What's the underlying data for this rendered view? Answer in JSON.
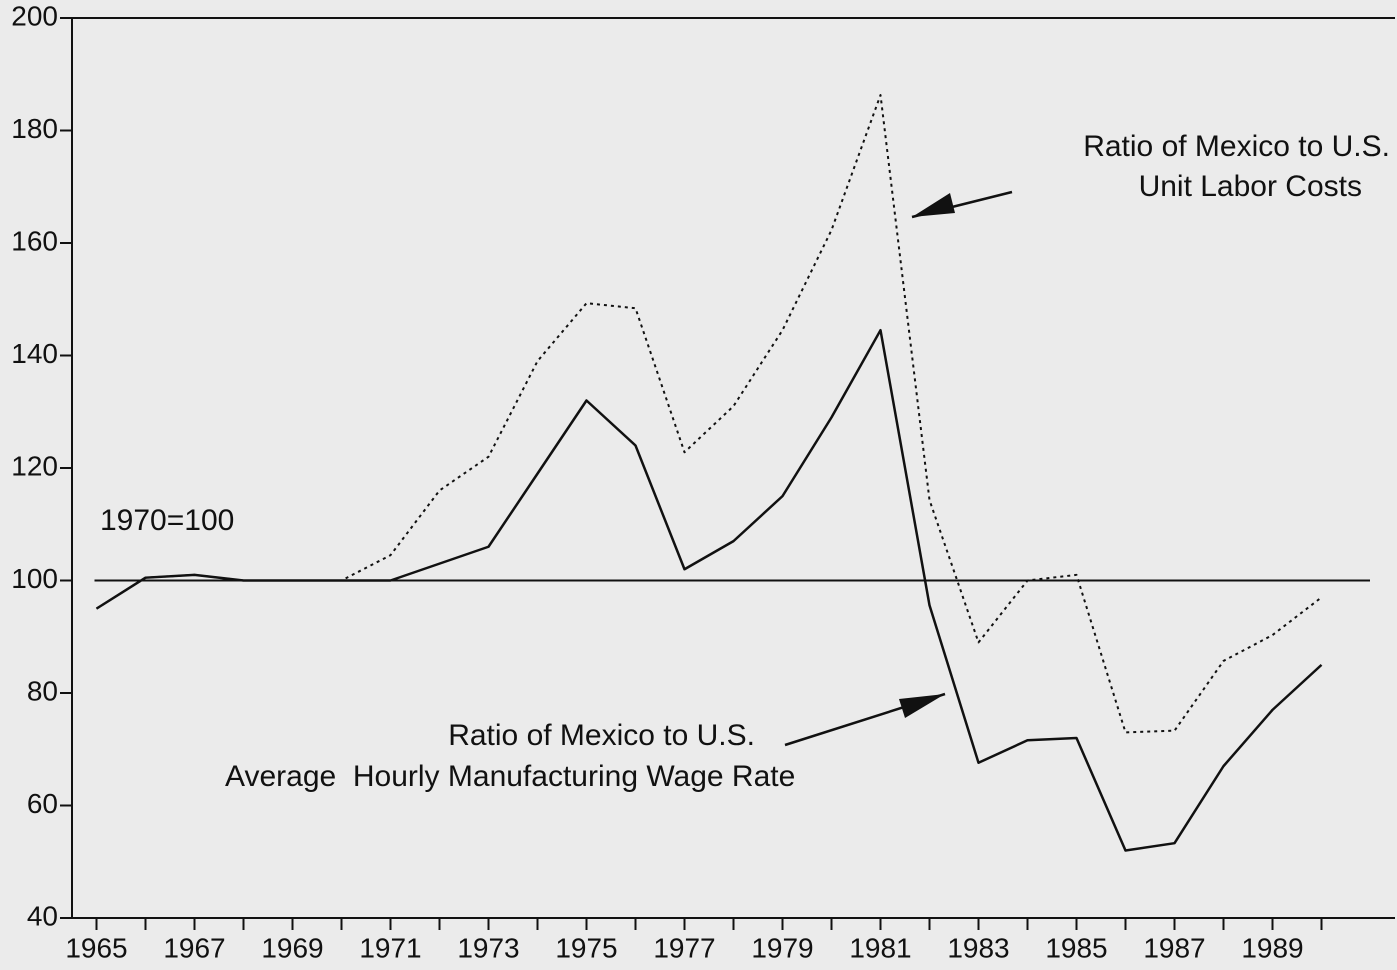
{
  "chart_data": {
    "type": "line",
    "annotations": [
      {
        "lines": [
          "Ratio of Mexico to U.S.",
          "Unit Labor Costs"
        ]
      },
      {
        "lines": [
          "Ratio of Mexico to U.S.",
          "Average  Hourly Manufacturing Wage Rate"
        ]
      },
      {
        "lines": [
          "1970=100"
        ]
      }
    ],
    "x": [
      1965,
      1966,
      1967,
      1968,
      1969,
      1970,
      1971,
      1972,
      1973,
      1974,
      1975,
      1976,
      1977,
      1978,
      1979,
      1980,
      1981,
      1982,
      1983,
      1984,
      1985,
      1986,
      1987,
      1988,
      1989,
      1990
    ],
    "series": [
      {
        "name": "Ratio of Mexico to U.S. Unit Labor Costs",
        "color": "#111111",
        "dash": true,
        "values": [
          95,
          100.5,
          101,
          100,
          100,
          100,
          104.5,
          116,
          122,
          139,
          149.3,
          148.4,
          122.8,
          131,
          144.5,
          162.3,
          186.3,
          114.3,
          89,
          100,
          101,
          73,
          73.3,
          85.7,
          90.3,
          97
        ]
      },
      {
        "name": "Ratio of Mexico to U.S. Average Hourly Manufacturing Wage Rate",
        "color": "#111111",
        "dash": false,
        "values": [
          95,
          100.5,
          101,
          100,
          100,
          100,
          100,
          103,
          106,
          119,
          132,
          124,
          102,
          107,
          115,
          129,
          144.5,
          95.6,
          67.6,
          71.6,
          72,
          52,
          53.3,
          67,
          77,
          85
        ]
      }
    ],
    "reference_line": 100,
    "xlim": [
      1964.5,
      1991.5
    ],
    "xticks": [
      1965,
      1967,
      1969,
      1971,
      1973,
      1975,
      1977,
      1979,
      1981,
      1983,
      1985,
      1987,
      1989
    ],
    "ylim": [
      40,
      200
    ],
    "yticks": [
      40,
      60,
      80,
      100,
      120,
      140,
      160,
      180,
      200
    ]
  }
}
